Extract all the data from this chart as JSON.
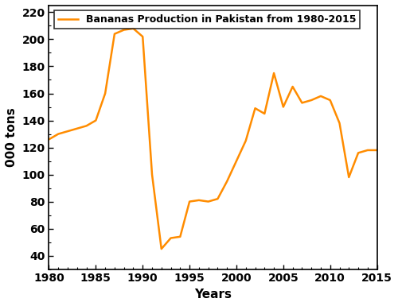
{
  "years": [
    1980,
    1981,
    1982,
    1983,
    1984,
    1985,
    1986,
    1987,
    1988,
    1989,
    1990,
    1991,
    1992,
    1993,
    1994,
    1995,
    1996,
    1997,
    1998,
    1999,
    2000,
    2001,
    2002,
    2003,
    2004,
    2005,
    2006,
    2007,
    2008,
    2009,
    2010,
    2011,
    2012,
    2013,
    2014,
    2015
  ],
  "production": [
    126,
    130,
    132,
    134,
    136,
    140,
    160,
    204,
    207,
    208,
    202,
    100,
    45,
    53,
    54,
    80,
    81,
    80,
    82,
    95,
    110,
    125,
    149,
    145,
    175,
    150,
    165,
    153,
    155,
    158,
    155,
    138,
    98,
    116,
    118,
    118
  ],
  "line_color": "#FF8C00",
  "legend_label": "Bananas Production in Pakistan from 1980-2015",
  "xlabel": "Years",
  "ylabel": "000 tons",
  "xlim": [
    1980,
    2015
  ],
  "ylim": [
    30,
    225
  ],
  "xticks": [
    1980,
    1985,
    1990,
    1995,
    2000,
    2005,
    2010,
    2015
  ],
  "yticks": [
    40,
    60,
    80,
    100,
    120,
    140,
    160,
    180,
    200,
    220
  ],
  "line_width": 1.8,
  "background_color": "#ffffff",
  "legend_fontsize": 9,
  "axis_label_fontsize": 11,
  "tick_fontsize": 10
}
